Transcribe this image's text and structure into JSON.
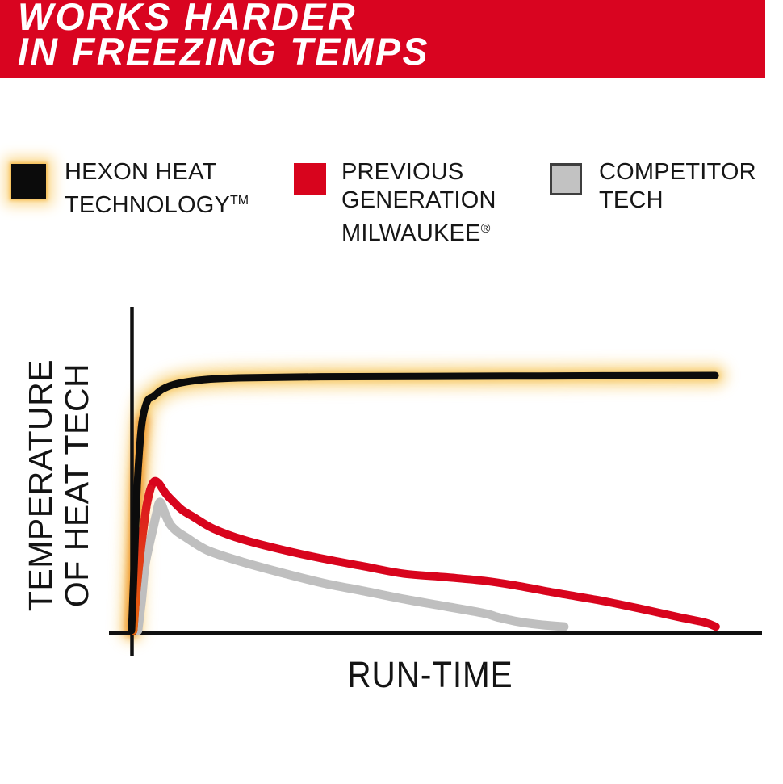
{
  "banner": {
    "line1": "WORKS HARDER",
    "line2": "IN FREEZING TEMPS",
    "bg_color": "#D90420",
    "text_color": "#FFFFFF"
  },
  "legend": [
    {
      "series_id": "hexon",
      "label_lines": [
        "HEXON HEAT",
        "TECHNOLOGY"
      ],
      "suffix": "TM",
      "swatch_color": "#0B0B0B",
      "glow_color_inner": "#F6BC4F",
      "glow_color_outer": "#FBD98F"
    },
    {
      "series_id": "previous-gen",
      "label_lines": [
        "PREVIOUS",
        "GENERATION",
        "MILWAUKEE"
      ],
      "suffix": "®",
      "swatch_color": "#D8041D"
    },
    {
      "series_id": "competitor",
      "label_lines": [
        "COMPETITOR",
        "TECH"
      ],
      "swatch_color": "#C2C2C2",
      "swatch_border": "#3E3E3E"
    }
  ],
  "axes": {
    "y_label_line1": "TEMPERATURE",
    "y_label_line2": "OF HEAT TECH",
    "x_label": "RUN-TIME",
    "axis_color": "#101010"
  },
  "chart_data": {
    "type": "line",
    "title": "WORKS HARDER IN FREEZING TEMPS",
    "xlabel": "RUN-TIME",
    "ylabel": "TEMPERATURE OF HEAT TECH",
    "x_ticks": [],
    "y_ticks": [],
    "xlim": [
      0,
      100
    ],
    "ylim": [
      0,
      100
    ],
    "grid": false,
    "legend_position": "top",
    "axis_values_shown": false,
    "units": "relative (unlabeled qualitative axes)",
    "series": [
      {
        "name": "HEXON HEAT TECHNOLOGY",
        "color": "#0C0C0C",
        "stroke_width": 9,
        "glow_outer": "#FAD98E",
        "glow_inner": "#F6C763",
        "rise_glow": "#EE8A1F",
        "points": [
          [
            0,
            0.5
          ],
          [
            0.4,
            20
          ],
          [
            0.9,
            45
          ],
          [
            1.3,
            57
          ],
          [
            1.7,
            65
          ],
          [
            2.5,
            71
          ],
          [
            3.5,
            72.5
          ],
          [
            5,
            74.8
          ],
          [
            7.5,
            76.5
          ],
          [
            12,
            77.7
          ],
          [
            18,
            78.2
          ],
          [
            30,
            78.5
          ],
          [
            45,
            78.6
          ],
          [
            60,
            78.7
          ],
          [
            75,
            78.8
          ],
          [
            92.7,
            78.9
          ]
        ]
      },
      {
        "name": "PREVIOUS GENERATION MILWAUKEE",
        "color": "#D8041D",
        "stroke_width": 10,
        "rise_gradient": [
          "#E8680C",
          "#DB1020"
        ],
        "points": [
          [
            0.3,
            0.5
          ],
          [
            0.8,
            13
          ],
          [
            1.5,
            26
          ],
          [
            2,
            33.5
          ],
          [
            2.4,
            39
          ],
          [
            3,
            44
          ],
          [
            3.6,
            46.4
          ],
          [
            4.3,
            45.8
          ],
          [
            4.8,
            44.4
          ],
          [
            5.6,
            42.2
          ],
          [
            6.7,
            40
          ],
          [
            8,
            37.6
          ],
          [
            10,
            35.2
          ],
          [
            13,
            31.8
          ],
          [
            17.6,
            28.5
          ],
          [
            24,
            25.3
          ],
          [
            30.4,
            22.6
          ],
          [
            37,
            20.2
          ],
          [
            43.2,
            18
          ],
          [
            50,
            16.9
          ],
          [
            56,
            15.8
          ],
          [
            61.2,
            14.3
          ],
          [
            67.6,
            12
          ],
          [
            74,
            9.9
          ],
          [
            80.4,
            7.4
          ],
          [
            86.8,
            4.7
          ],
          [
            91,
            3
          ],
          [
            92.8,
            1.7
          ]
        ]
      },
      {
        "name": "COMPETITOR TECH",
        "color": "#BFBFBF",
        "stroke_width": 11,
        "points": [
          [
            1,
            0.5
          ],
          [
            1.6,
            10
          ],
          [
            2.1,
            20
          ],
          [
            2.7,
            26
          ],
          [
            3.3,
            31
          ],
          [
            3.9,
            36
          ],
          [
            4.5,
            40
          ],
          [
            5.3,
            36.5
          ],
          [
            6.1,
            33.2
          ],
          [
            7.2,
            31
          ],
          [
            8.6,
            29.2
          ],
          [
            12,
            25.2
          ],
          [
            17.6,
            21.6
          ],
          [
            24,
            18.2
          ],
          [
            30.4,
            15.1
          ],
          [
            37,
            12.6
          ],
          [
            43.2,
            10.2
          ],
          [
            50,
            7.9
          ],
          [
            56,
            5.8
          ],
          [
            58.2,
            4.6
          ],
          [
            61.2,
            3.3
          ],
          [
            64.5,
            2.4
          ],
          [
            68.7,
            1.7
          ]
        ]
      }
    ]
  }
}
